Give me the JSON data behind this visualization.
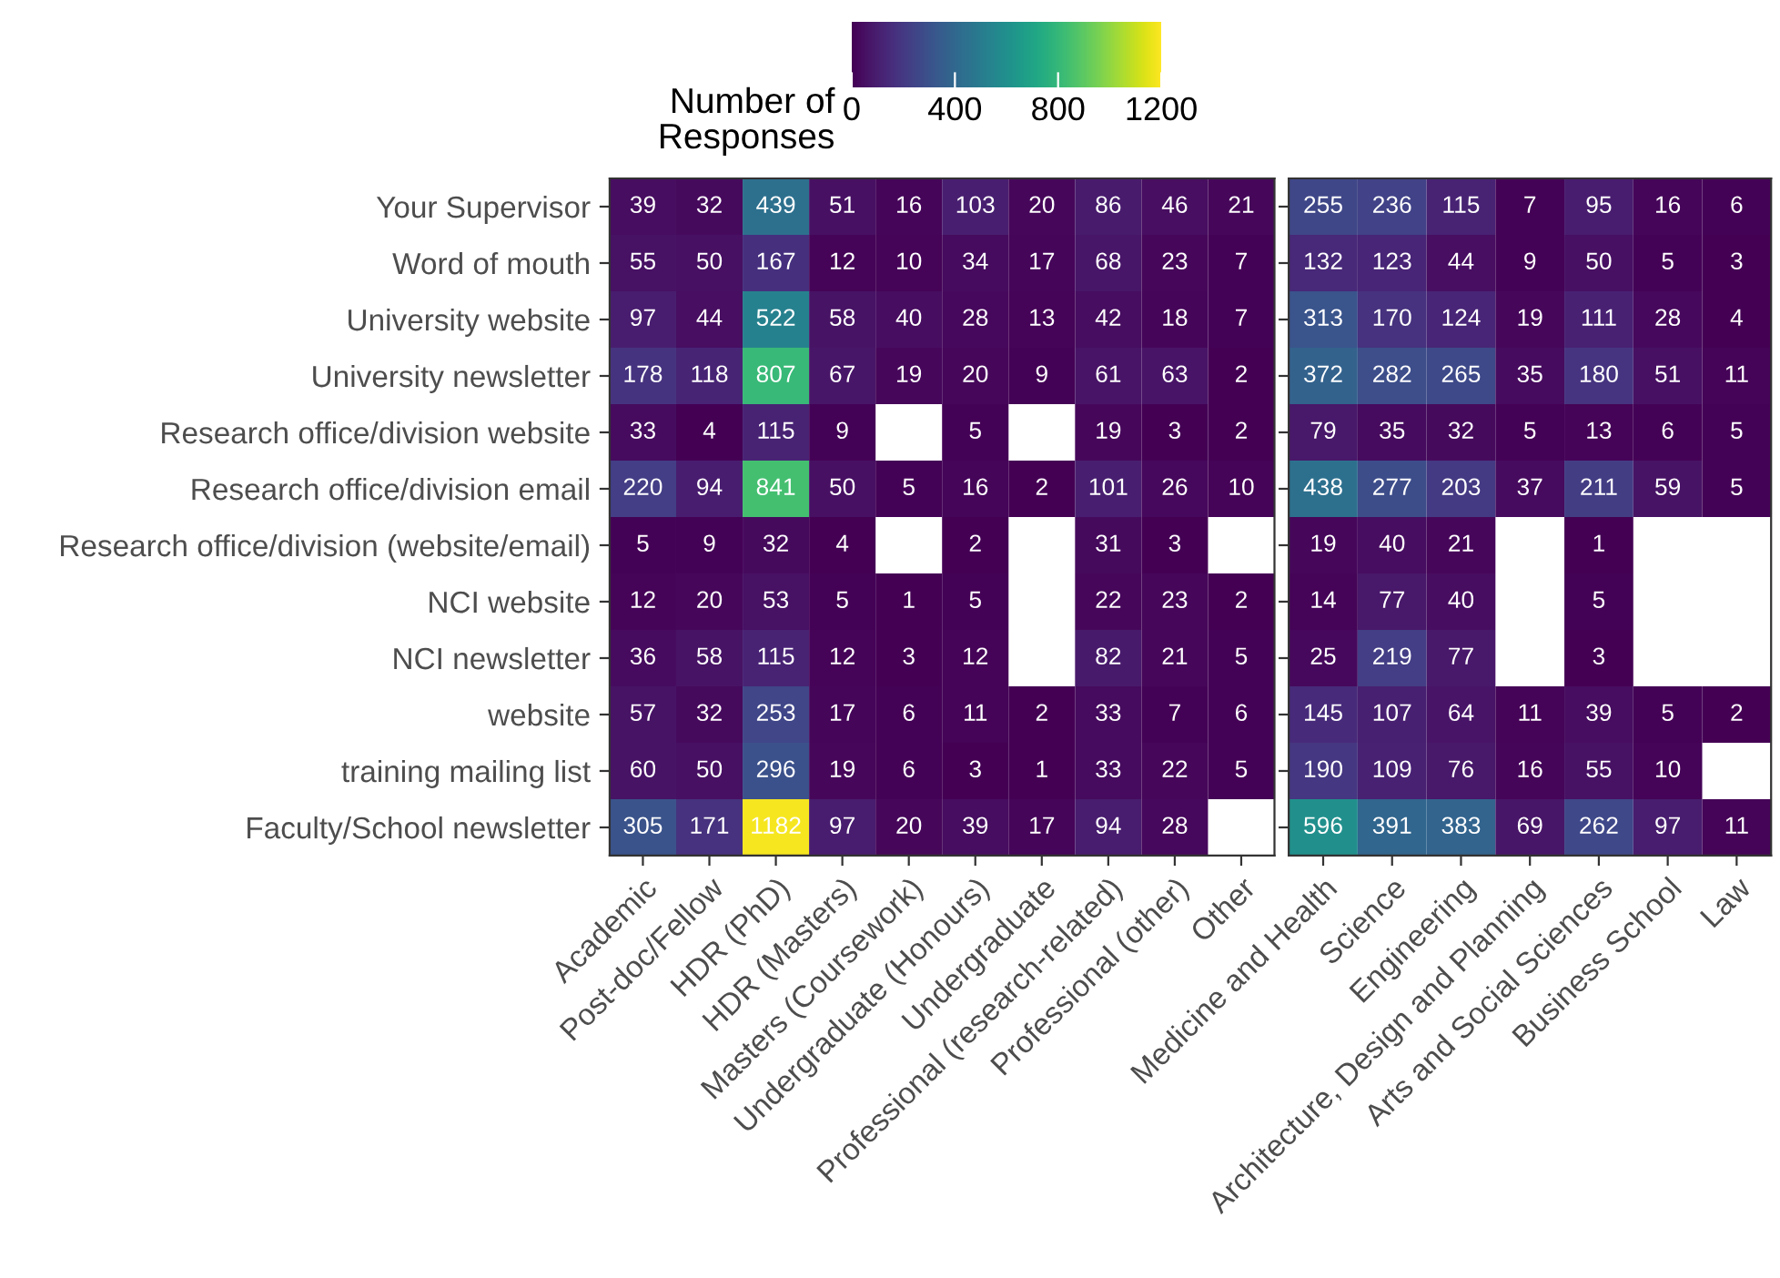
{
  "chart_data": [
    {
      "type": "heatmap",
      "clabel": "Number of\nResponses",
      "clim": [
        0,
        1200
      ],
      "cticks": [
        0,
        400,
        800,
        1200
      ],
      "data_labels": true,
      "grid": false,
      "categories": [
        "Academic",
        "Post-doc/Fellow",
        "HDR (PhD)",
        "HDR (Masters)",
        "Masters (Coursework)",
        "Undergraduate (Honours)",
        "Undergraduate",
        "Professional (research-related)",
        "Professional (other)",
        "Other"
      ],
      "y_categories": [
        "Your Supervisor",
        "Word of mouth",
        "University website",
        "University newsletter",
        "Research office/division website",
        "Research office/division email",
        "Research office/division (website/email)",
        "NCI website",
        "NCI newsletter",
        "website",
        "training mailing list",
        "Faculty/School newsletter"
      ],
      "cells": [
        [
          39,
          32,
          439,
          51,
          16,
          103,
          20,
          86,
          46,
          21
        ],
        [
          55,
          50,
          167,
          12,
          10,
          34,
          17,
          68,
          23,
          7
        ],
        [
          97,
          44,
          522,
          58,
          40,
          28,
          13,
          42,
          18,
          7
        ],
        [
          178,
          118,
          807,
          67,
          19,
          20,
          9,
          61,
          63,
          2
        ],
        [
          33,
          4,
          115,
          9,
          null,
          5,
          null,
          19,
          3,
          2
        ],
        [
          220,
          94,
          841,
          50,
          5,
          16,
          2,
          101,
          26,
          10
        ],
        [
          5,
          9,
          32,
          4,
          null,
          2,
          null,
          31,
          3,
          null
        ],
        [
          12,
          20,
          53,
          5,
          1,
          5,
          null,
          22,
          23,
          2
        ],
        [
          36,
          58,
          115,
          12,
          3,
          12,
          null,
          82,
          21,
          5
        ],
        [
          57,
          32,
          253,
          17,
          6,
          11,
          2,
          33,
          7,
          6
        ],
        [
          60,
          50,
          296,
          19,
          6,
          3,
          1,
          33,
          22,
          5
        ],
        [
          305,
          171,
          1182,
          97,
          20,
          39,
          17,
          94,
          28,
          null
        ]
      ]
    },
    {
      "type": "heatmap",
      "data_labels": true,
      "grid": false,
      "tick_labels": "x",
      "categories": [
        "Medicine and Health",
        "Science",
        "Engineering",
        "Architecture, Design and Planning",
        "Arts and Social Sciences",
        "Business School",
        "Law"
      ],
      "y_categories": [
        null,
        null,
        null,
        null,
        null,
        null,
        null,
        null,
        null,
        null,
        null,
        null
      ],
      "cells": [
        [
          255,
          236,
          115,
          7,
          95,
          16,
          6
        ],
        [
          132,
          123,
          44,
          9,
          50,
          5,
          3
        ],
        [
          313,
          170,
          124,
          19,
          111,
          28,
          4
        ],
        [
          372,
          282,
          265,
          35,
          180,
          51,
          11
        ],
        [
          79,
          35,
          32,
          5,
          13,
          6,
          5
        ],
        [
          438,
          277,
          203,
          37,
          211,
          59,
          5
        ],
        [
          19,
          40,
          21,
          null,
          1,
          null,
          null
        ],
        [
          14,
          77,
          40,
          null,
          5,
          null,
          null
        ],
        [
          25,
          219,
          77,
          null,
          3,
          null,
          null
        ],
        [
          145,
          107,
          64,
          11,
          39,
          5,
          2
        ],
        [
          190,
          109,
          76,
          16,
          55,
          10,
          null
        ],
        [
          596,
          391,
          383,
          69,
          262,
          97,
          11
        ]
      ]
    }
  ]
}
